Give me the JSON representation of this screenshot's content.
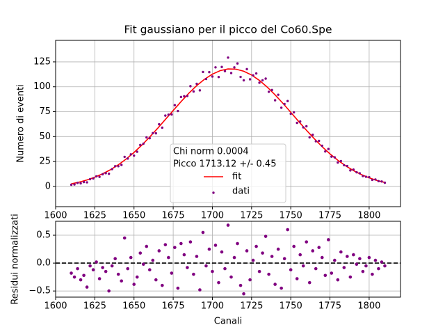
{
  "chart_data": [
    {
      "type": "scatter",
      "title": "Fit gaussiano per il picco del Co60.Spe",
      "ylabel": "Numero di eventi",
      "xlim": [
        1600,
        1820
      ],
      "ylim": [
        -20.3,
        146.6
      ],
      "xticks": [
        1600,
        1625,
        1650,
        1675,
        1700,
        1725,
        1750,
        1775,
        1800
      ],
      "yticks": [
        0,
        25,
        50,
        75,
        100,
        125
      ],
      "grid": true,
      "legend": "lower center",
      "legend_title": [
        "Chi norm 0.0004",
        "Picco 1713.12 +/- 0.45"
      ],
      "series": [
        {
          "name": "fit",
          "type": "line",
          "color": "#ff0000",
          "x": [
            1610,
            1615,
            1620,
            1625,
            1630,
            1635,
            1640,
            1645,
            1650,
            1655,
            1660,
            1665,
            1670,
            1675,
            1680,
            1685,
            1690,
            1695,
            1700,
            1705,
            1710,
            1715,
            1720,
            1725,
            1730,
            1735,
            1740,
            1745,
            1750,
            1755,
            1760,
            1765,
            1770,
            1775,
            1780,
            1785,
            1790,
            1795,
            1800,
            1805,
            1810
          ],
          "values": [
            2.6,
            4.3,
            6.5,
            9.3,
            12.7,
            16.8,
            21.7,
            27.5,
            34.1,
            41.5,
            49.6,
            58.2,
            67.2,
            76.2,
            85.1,
            93.6,
            101.2,
            107.6,
            112.7,
            116.2,
            117.9,
            117.7,
            115.6,
            111.8,
            106.4,
            99.7,
            91.9,
            83.4,
            74.4,
            65.3,
            56.4,
            47.9,
            39.9,
            32.7,
            26.3,
            20.7,
            15.9,
            11.9,
            8.7,
            6.0,
            4.0
          ]
        },
        {
          "name": "dati",
          "type": "scatter",
          "color": "#800080",
          "x": [
            1610,
            1612,
            1614,
            1616,
            1618,
            1620,
            1622,
            1624,
            1626,
            1628,
            1630,
            1632,
            1634,
            1636,
            1638,
            1640,
            1642,
            1644,
            1646,
            1648,
            1650,
            1652,
            1654,
            1656,
            1658,
            1660,
            1662,
            1664,
            1666,
            1668,
            1670,
            1672,
            1674,
            1676,
            1678,
            1680,
            1682,
            1684,
            1686,
            1688,
            1690,
            1692,
            1694,
            1696,
            1698,
            1700,
            1702,
            1704,
            1706,
            1708,
            1710,
            1712,
            1714,
            1716,
            1718,
            1720,
            1722,
            1724,
            1726,
            1728,
            1730,
            1732,
            1734,
            1736,
            1738,
            1740,
            1742,
            1744,
            1746,
            1748,
            1750,
            1752,
            1754,
            1756,
            1758,
            1760,
            1762,
            1764,
            1766,
            1768,
            1770,
            1772,
            1774,
            1776,
            1778,
            1780,
            1782,
            1784,
            1786,
            1788,
            1790,
            1792,
            1794,
            1796,
            1798,
            1800,
            1802,
            1804,
            1806,
            1808,
            1810
          ],
          "values": [
            1.7,
            2.0,
            3.5,
            3.1,
            4.4,
            4.1,
            7.3,
            8.0,
            10.1,
            9.6,
            12.2,
            13.3,
            12.7,
            17.4,
            20.3,
            20.3,
            21.6,
            29.7,
            28.0,
            32.2,
            30.9,
            34.8,
            41.6,
            42.9,
            49.2,
            48.4,
            53.5,
            53.3,
            62.4,
            59.0,
            71.1,
            72.0,
            72.2,
            81.6,
            75.7,
            89.8,
            90.5,
            90.8,
            100.6,
            95.3,
            103.0,
            96.4,
            114.9,
            107.8,
            114.7,
            110.3,
            119.5,
            109.8,
            119.9,
            115.7,
            129.3,
            113.8,
            119.5,
            123.4,
            109.9,
            106.5,
            117.7,
            107.5,
            111.5,
            113.4,
            104.1,
            106.5,
            108.2,
            95.0,
            96.8,
            86.5,
            92.0,
            79.0,
            82.7,
            85.7,
            72.9,
            74.4,
            63.8,
            65.2,
            59.3,
            60.4,
            49.3,
            51.8,
            45.3,
            45.7,
            40.8,
            35.1,
            37.6,
            29.9,
            29.2,
            24.0,
            25.5,
            21.3,
            20.5,
            16.1,
            16.9,
            14.2,
            13.2,
            10.4,
            9.7,
            9.3,
            6.6,
            7.0,
            5.3,
            5.0,
            3.7
          ]
        }
      ]
    },
    {
      "type": "scatter",
      "xlabel": "Canali",
      "ylabel": "Residui normalizzati",
      "xlim": [
        1600,
        1820
      ],
      "ylim": [
        -0.61,
        0.75
      ],
      "xticks": [
        1600,
        1625,
        1650,
        1675,
        1700,
        1725,
        1750,
        1775,
        1800
      ],
      "yticks": [
        {
          "value": -0.5,
          "label": "−0.5"
        },
        {
          "value": 0,
          "label": "0.0"
        },
        0.5
      ],
      "grid": true,
      "hline": 0,
      "series": [
        {
          "type": "scatter",
          "color": "#800080",
          "x": [
            1610,
            1612,
            1614,
            1616,
            1618,
            1620,
            1622,
            1624,
            1626,
            1628,
            1630,
            1632,
            1634,
            1636,
            1638,
            1640,
            1642,
            1644,
            1646,
            1648,
            1650,
            1652,
            1654,
            1656,
            1658,
            1660,
            1662,
            1664,
            1666,
            1668,
            1670,
            1672,
            1674,
            1676,
            1678,
            1680,
            1682,
            1684,
            1686,
            1688,
            1690,
            1692,
            1694,
            1696,
            1698,
            1700,
            1702,
            1704,
            1706,
            1708,
            1710,
            1712,
            1714,
            1716,
            1718,
            1720,
            1722,
            1724,
            1726,
            1728,
            1730,
            1732,
            1734,
            1736,
            1738,
            1740,
            1742,
            1744,
            1746,
            1748,
            1750,
            1752,
            1754,
            1756,
            1758,
            1760,
            1762,
            1764,
            1766,
            1768,
            1770,
            1772,
            1774,
            1776,
            1778,
            1780,
            1782,
            1784,
            1786,
            1788,
            1790,
            1792,
            1794,
            1796,
            1798,
            1800,
            1802,
            1804,
            1806,
            1808,
            1810
          ],
          "values": [
            -0.18,
            -0.25,
            -0.1,
            -0.3,
            -0.22,
            -0.43,
            -0.05,
            -0.12,
            0.02,
            -0.28,
            -0.08,
            -0.15,
            -0.5,
            -0.05,
            0.08,
            -0.2,
            -0.32,
            0.45,
            -0.1,
            0.1,
            -0.38,
            -0.25,
            0.18,
            -0.02,
            0.3,
            -0.12,
            0.05,
            -0.3,
            0.22,
            -0.4,
            0.33,
            0.1,
            -0.18,
            0.28,
            -0.45,
            0.35,
            0.15,
            -0.08,
            0.38,
            -0.2,
            0.12,
            -0.48,
            0.55,
            -0.05,
            0.25,
            -0.15,
            0.32,
            -0.35,
            0.2,
            -0.1,
            0.68,
            -0.25,
            0.1,
            0.35,
            -0.4,
            -0.55,
            0.22,
            -0.3,
            0.05,
            0.3,
            -0.15,
            0.18,
            0.48,
            -0.2,
            0.12,
            -0.38,
            0.25,
            -0.45,
            0.08,
            0.6,
            -0.12,
            0.3,
            -0.28,
            0.15,
            -0.05,
            0.38,
            -0.35,
            0.22,
            -0.1,
            0.28,
            0.1,
            -0.22,
            0.42,
            -0.18,
            0.05,
            -0.3,
            0.2,
            -0.08,
            0.12,
            -0.25,
            0.15,
            -0.02,
            0.08,
            -0.15,
            -0.05,
            0.1,
            -0.2,
            0.05,
            -0.1,
            0.02,
            -0.05
          ]
        }
      ]
    }
  ]
}
